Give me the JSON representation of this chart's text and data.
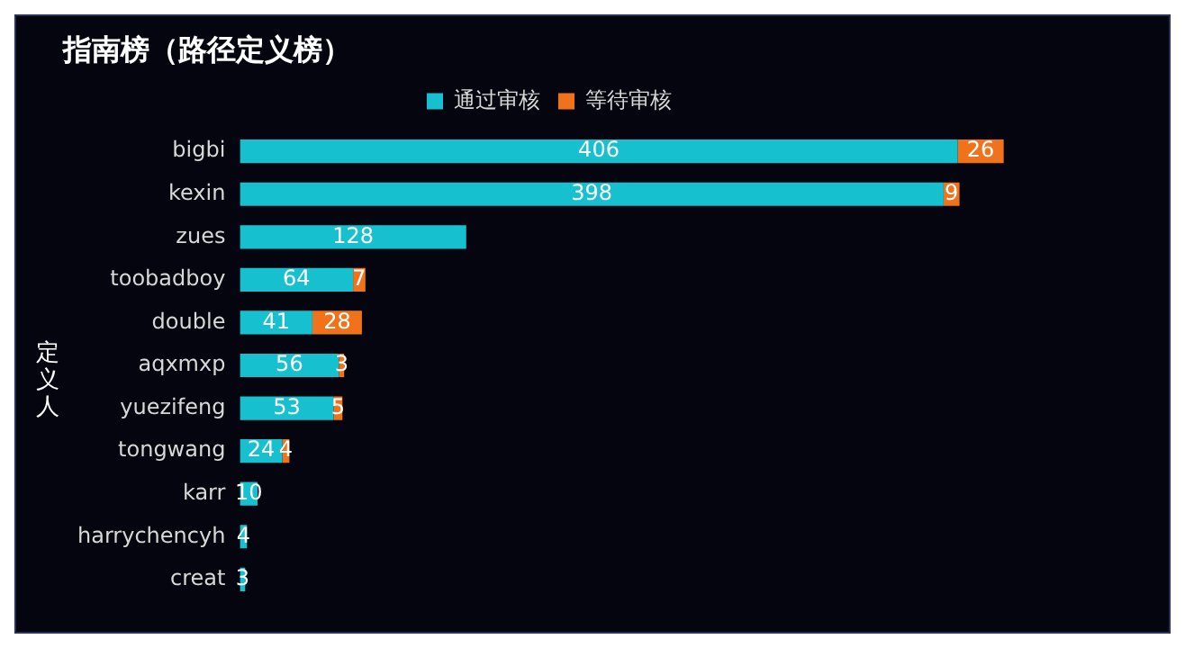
{
  "chart_data": {
    "type": "bar",
    "orientation": "horizontal",
    "stacked": true,
    "title": "指南榜（路径定义榜）",
    "ylabel": "定义人",
    "categories": [
      "bigbi",
      "kexin",
      "zues",
      "toobadboy",
      "double",
      "aqxmxp",
      "yuezifeng",
      "tongwang",
      "karr",
      "harrychencyh",
      "creat"
    ],
    "series": [
      {
        "name": "通过审核",
        "color": "#17c0ce",
        "values": [
          406,
          398,
          128,
          64,
          41,
          56,
          53,
          24,
          10,
          4,
          3
        ]
      },
      {
        "name": "等待审核",
        "color": "#f0731c",
        "values": [
          26,
          9,
          null,
          7,
          28,
          3,
          5,
          4,
          null,
          null,
          null
        ]
      }
    ],
    "data_labels": true,
    "legend": "top",
    "tick_labels": "y"
  }
}
